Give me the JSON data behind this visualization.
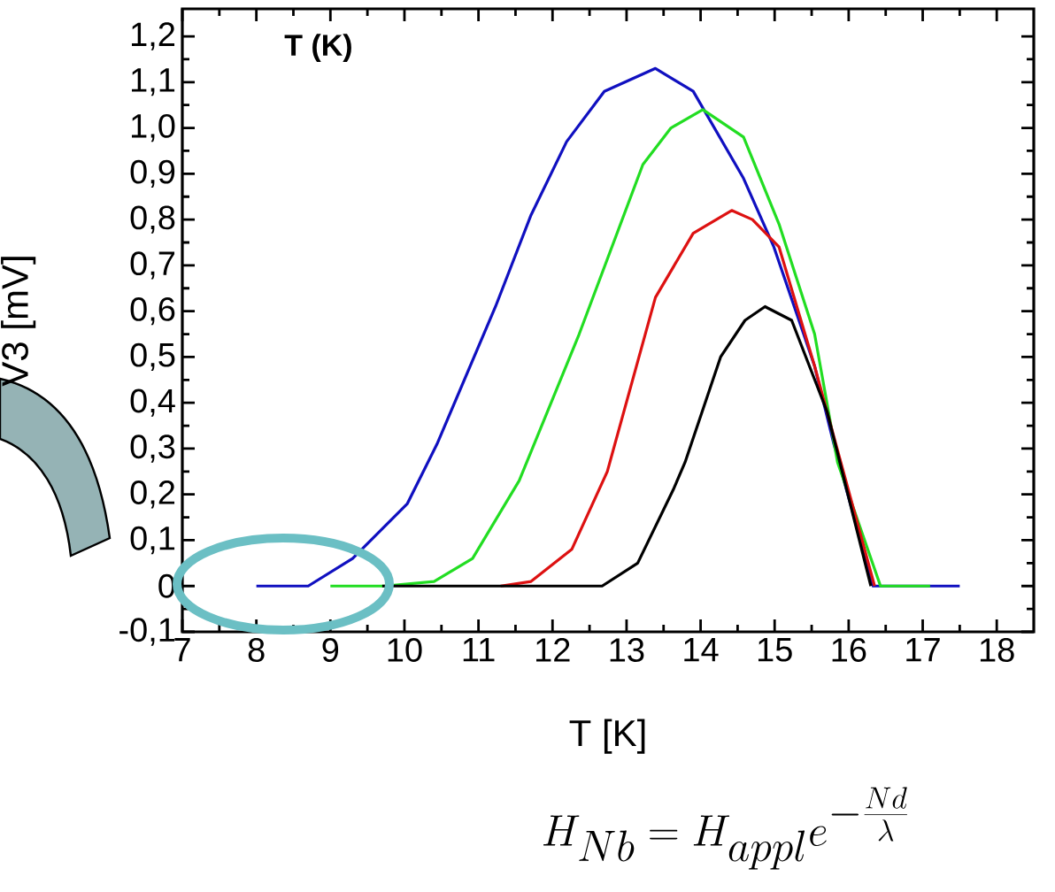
{
  "chart_data": {
    "type": "line",
    "xlabel": "T [K]",
    "ylabel": "V3 [mV]",
    "xlim": [
      7,
      18.5
    ],
    "ylim": [
      -0.1,
      1.26
    ],
    "xticks": [
      7,
      8,
      9,
      10,
      11,
      12,
      13,
      14,
      15,
      16,
      17,
      18
    ],
    "yticks": [
      {
        "value": -0.1,
        "label": "-0,1"
      },
      {
        "value": 0,
        "label": "0"
      },
      {
        "value": 0.1,
        "label": "0,1"
      },
      {
        "value": 0.2,
        "label": "0,2"
      },
      {
        "value": 0.3,
        "label": "0,3"
      },
      {
        "value": 0.4,
        "label": "0,4"
      },
      {
        "value": 0.5,
        "label": "0,5"
      },
      {
        "value": 0.6,
        "label": "0,6"
      },
      {
        "value": 0.7,
        "label": "0,7"
      },
      {
        "value": 0.8,
        "label": "0,8"
      },
      {
        "value": 0.9,
        "label": "0,9"
      },
      {
        "value": 1.0,
        "label": "1,0"
      },
      {
        "value": 1.1,
        "label": "1,1"
      },
      {
        "value": 1.2,
        "label": "1,2"
      }
    ],
    "annotations": [
      "T (K)",
      "H_{Nb} = H_{appl} e^{-\\frac{Nd}{\\lambda}}"
    ],
    "series": [
      {
        "color": "#1010c0",
        "x": [
          8.0,
          8.7,
          9.3,
          10.04,
          10.44,
          11.23,
          11.71,
          12.19,
          12.7,
          13.39,
          13.9,
          14.58,
          14.99,
          15.54,
          15.8,
          16.33,
          17.5
        ],
        "values": [
          0,
          0,
          0.06,
          0.18,
          0.31,
          0.61,
          0.81,
          0.97,
          1.08,
          1.13,
          1.08,
          0.89,
          0.74,
          0.48,
          0.31,
          0,
          0
        ]
      },
      {
        "color": "#22dd22",
        "x": [
          9.0,
          9.73,
          10.4,
          10.92,
          11.55,
          12.36,
          13.22,
          13.6,
          14.03,
          14.58,
          15.06,
          15.54,
          15.85,
          16.43,
          17.1
        ],
        "values": [
          0,
          0,
          0.01,
          0.06,
          0.23,
          0.55,
          0.92,
          1.0,
          1.04,
          0.98,
          0.79,
          0.55,
          0.27,
          0,
          0
        ]
      },
      {
        "color": "#dd1111",
        "x": [
          11.3,
          11.71,
          12.26,
          12.74,
          13.39,
          13.9,
          14.42,
          14.7,
          15.06,
          15.54,
          16.35
        ],
        "values": [
          0,
          0.01,
          0.08,
          0.25,
          0.63,
          0.77,
          0.82,
          0.8,
          0.74,
          0.48,
          0
        ]
      },
      {
        "color": "#000000",
        "x": [
          9.7,
          12.67,
          13.15,
          13.63,
          13.79,
          14.27,
          14.6,
          14.87,
          15.23,
          15.71,
          16.3
        ],
        "values": [
          0,
          0,
          0.05,
          0.21,
          0.27,
          0.5,
          0.58,
          0.61,
          0.58,
          0.38,
          0
        ]
      }
    ]
  }
}
